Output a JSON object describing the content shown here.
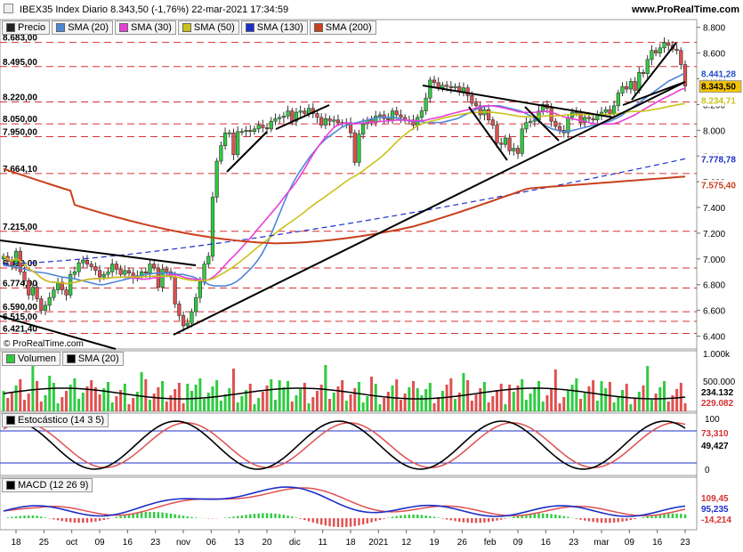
{
  "header": {
    "title": "IBEX35 Index Diario 8.343,50 (-1,76%) 22-mar-2021 17:34:59",
    "site": "www.ProRealTime.com",
    "footer": "© ProRealTime.com"
  },
  "price_panel": {
    "legend": [
      {
        "label": "Precio",
        "color": "#222222"
      },
      {
        "label": "SMA (20)",
        "color": "#4f86d9"
      },
      {
        "label": "SMA (30)",
        "color": "#e83fd8"
      },
      {
        "label": "SMA (50)",
        "color": "#c9c219"
      },
      {
        "label": "SMA (130)",
        "color": "#1c2fc9"
      },
      {
        "label": "SMA (200)",
        "color": "#c9401c"
      }
    ],
    "left_levels": [
      "8.683,00",
      "8.495,00",
      "8.220,00",
      "8.050,00",
      "7.950,00",
      "7.664,10",
      "7.215,00",
      "6.930,00",
      "6.774,00",
      "6.590,00",
      "6.515,00",
      "6.421,40"
    ],
    "axis_ticks": [
      "8.800",
      "8.600",
      "8.400",
      "8.200",
      "8.000",
      "7.800",
      "7.600",
      "7.400",
      "7.200",
      "7.000",
      "6.800",
      "6.600",
      "6.400"
    ],
    "tags": [
      {
        "text": "8.441,28",
        "value": 8441.28,
        "color": "#1f4fc9",
        "bg": "#ffffff"
      },
      {
        "text": "8.343,50",
        "value": 8343.5,
        "color": "#000000",
        "bg": "#f4c400"
      },
      {
        "text": "8.234,71",
        "value": 8234.71,
        "color": "#c9c219",
        "bg": "#ffffff"
      },
      {
        "text": "7.778,78",
        "value": 7778.78,
        "color": "#1c2fc9",
        "bg": "#ffffff"
      },
      {
        "text": "7.575,40",
        "value": 7575.4,
        "color": "#c9401c",
        "bg": "#ffffff"
      }
    ]
  },
  "volume_panel": {
    "legend": [
      {
        "label": "Volumen",
        "color": "#2ecc40"
      },
      {
        "label": "SMA (20)",
        "color": "#000000"
      }
    ],
    "axis_ticks": [
      "1.000k",
      "500.000"
    ],
    "tags": [
      {
        "text": "234.132",
        "color": "#000000"
      },
      {
        "text": "229.082",
        "color": "#d63030"
      }
    ]
  },
  "stoch_panel": {
    "legend": [
      {
        "label": "Estocástico (14 3 5)",
        "color": "#000000"
      }
    ],
    "axis_ticks": [
      "100",
      "0"
    ],
    "tags": [
      {
        "text": "73,310",
        "color": "#d63030"
      },
      {
        "text": "49,427",
        "color": "#000000"
      }
    ]
  },
  "macd_panel": {
    "legend": [
      {
        "label": "MACD (12 26 9)",
        "color": "#000000"
      }
    ],
    "tags": [
      {
        "text": "109,45",
        "color": "#d63030"
      },
      {
        "text": "95,235",
        "color": "#1c2fc9"
      },
      {
        "text": "-14,214",
        "color": "#d63030"
      }
    ]
  },
  "x_axis": [
    "18",
    "25",
    "oct",
    "09",
    "16",
    "23",
    "nov",
    "06",
    "13",
    "20",
    "dic",
    "11",
    "18",
    "2021",
    "12",
    "19",
    "26",
    "feb",
    "09",
    "16",
    "23",
    "mar",
    "09",
    "16",
    "23"
  ],
  "chart_data": {
    "type": "line",
    "title": "IBEX35 Index Diario",
    "ylim": [
      6300,
      8860
    ],
    "closes": [
      7020,
      6980,
      6950,
      7060,
      6900,
      6830,
      6720,
      6780,
      6690,
      6600,
      6640,
      6700,
      6760,
      6820,
      6760,
      6720,
      6880,
      6900,
      6970,
      6990,
      6960,
      6940,
      6910,
      6860,
      6880,
      6900,
      6960,
      6920,
      6880,
      6910,
      6890,
      6850,
      6870,
      6900,
      6890,
      6960,
      6930,
      6780,
      6920,
      6900,
      6860,
      6650,
      6560,
      6480,
      6500,
      6590,
      6700,
      6820,
      6960,
      7020,
      7480,
      7760,
      7880,
      7980,
      7980,
      7810,
      7990,
      7990,
      8000,
      7990,
      8010,
      8040,
      8020,
      8010,
      8070,
      8090,
      8100,
      8110,
      8150,
      8070,
      8140,
      8150,
      8130,
      8170,
      8130,
      8100,
      8040,
      8090,
      8070,
      8080,
      8060,
      8050,
      8060,
      7980,
      7750,
      7970,
      8050,
      8080,
      8060,
      8110,
      8120,
      8090,
      8080,
      8150,
      8120,
      8100,
      8080,
      8080,
      8040,
      8100,
      8150,
      8250,
      8390,
      8370,
      8330,
      8350,
      8340,
      8330,
      8340,
      8300,
      8330,
      8270,
      8210,
      8190,
      8120,
      8160,
      8080,
      8040,
      7900,
      7890,
      7940,
      7840,
      7860,
      7820,
      8010,
      8060,
      8070,
      8080,
      8150,
      8200,
      8170,
      8070,
      8030,
      8000,
      7980,
      8100,
      8140,
      8140,
      8060,
      8100,
      8090,
      8080,
      8120,
      8140,
      8160,
      8130,
      8190,
      8290,
      8340,
      8320,
      8380,
      8310,
      8450,
      8440,
      8550,
      8620,
      8600,
      8640,
      8680,
      8660,
      8630,
      8620,
      8510,
      8343.5
    ],
    "sma20": [
      6950,
      6945,
      6940,
      6930,
      6920,
      6910,
      6900,
      6895,
      6890,
      6880,
      6870,
      6860,
      6855,
      6850,
      6840,
      6830,
      6820,
      6810,
      6800,
      6800,
      6810,
      6820,
      6830,
      6840,
      6850,
      6860,
      6870,
      6880,
      6885,
      6890,
      6890,
      6890,
      6890,
      6880,
      6880,
      6870,
      6860,
      6840,
      6820,
      6800,
      6790,
      6790,
      6790,
      6800,
      6820,
      6850,
      6890,
      6930,
      6980,
      7040,
      7120,
      7220,
      7320,
      7420,
      7520,
      7600,
      7670,
      7730,
      7790,
      7840,
      7890,
      7930,
      7960,
      7990,
      8020,
      8040,
      8050,
      8060,
      8070,
      8080,
      8090,
      8100,
      8100,
      8100,
      8100,
      8090,
      8080,
      8070,
      8070,
      8070,
      8060,
      8060,
      8060,
      8060,
      8070,
      8080,
      8090,
      8110,
      8130,
      8150,
      8170,
      8180,
      8190,
      8190,
      8190,
      8180,
      8170,
      8160,
      8150,
      8130,
      8110,
      8080,
      8050,
      8030,
      8010,
      8000,
      7990,
      7990,
      8000,
      8010,
      8020,
      8030,
      8040,
      8050,
      8060,
      8070,
      8090,
      8110,
      8140,
      8170,
      8200,
      8230,
      8260,
      8290,
      8320,
      8350,
      8380,
      8400,
      8420,
      8441.28
    ]
  }
}
